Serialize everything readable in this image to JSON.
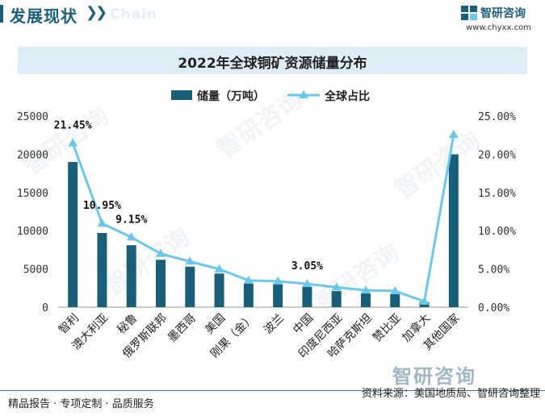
{
  "header": {
    "title": "发展现状",
    "arrows": "❯❯",
    "watermark": "Chain"
  },
  "logo": {
    "name": "智研咨询",
    "url": "www.chyxx.com"
  },
  "bottom_logo": "智研咨询",
  "footer": {
    "left": "精品报告 · 专项定制 · 品质服务",
    "source": "资料来源：美国地质局、智研咨询整理"
  },
  "colors": {
    "bar": "#1a5f7a",
    "line": "#6cc7ec",
    "accent": "#1a5f7a"
  },
  "chart_data": {
    "type": "bar",
    "title": "2022年全球铜矿资源储量分布",
    "categories": [
      "智利",
      "澳大利亚",
      "秘鲁",
      "俄罗斯联邦",
      "墨西哥",
      "美国",
      "刚果（金）",
      "波兰",
      "中国",
      "印度尼西亚",
      "哈萨克斯坦",
      "赞比亚",
      "加拿大",
      "其他国家"
    ],
    "series": [
      {
        "name": "储量（万吨）",
        "type": "bar",
        "axis": "left",
        "values": [
          19000,
          9700,
          8100,
          6200,
          5300,
          4400,
          3100,
          3000,
          2700,
          2100,
          1800,
          1700,
          660,
          20000
        ]
      },
      {
        "name": "全球占比",
        "type": "line",
        "axis": "right",
        "values": [
          21.45,
          10.95,
          9.15,
          7.0,
          5.98,
          4.97,
          3.5,
          3.39,
          3.05,
          2.6,
          2.2,
          2.12,
          0.75,
          22.58
        ]
      }
    ],
    "data_labels": [
      {
        "index": 0,
        "text": "21.45%"
      },
      {
        "index": 1,
        "text": "10.95%"
      },
      {
        "index": 2,
        "text": "9.15%"
      },
      {
        "index": 8,
        "text": "3.05%"
      }
    ],
    "left_axis": {
      "min": 0,
      "max": 25000,
      "ticks": [
        "0",
        "5000",
        "10000",
        "15000",
        "20000",
        "25000"
      ]
    },
    "right_axis": {
      "min": 0,
      "max": 25,
      "ticks": [
        "0.00%",
        "5.00%",
        "10.00%",
        "15.00%",
        "20.00%",
        "25.00%"
      ]
    },
    "legend_position": "top"
  }
}
